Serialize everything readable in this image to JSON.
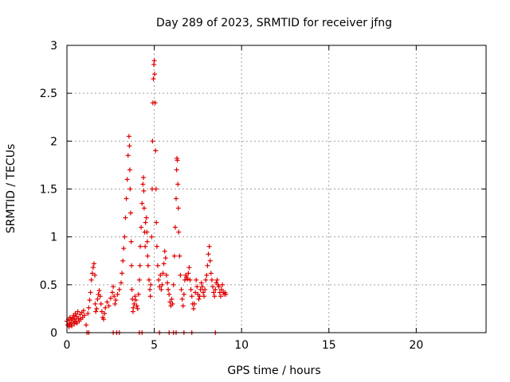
{
  "chart_data": {
    "type": "scatter",
    "title": "Day 289 of 2023, SRMTID for receiver jfng",
    "xlabel": "GPS time / hours",
    "ylabel": "SRMTID / TECUs",
    "xlim": [
      0,
      24
    ],
    "ylim": [
      0,
      3
    ],
    "xticks": [
      0,
      5,
      10,
      15,
      20
    ],
    "yticks": [
      0,
      0.5,
      1,
      1.5,
      2,
      2.5,
      3
    ],
    "xtick_labels": [
      "0",
      "5",
      "10",
      "15",
      "20"
    ],
    "ytick_labels": [
      "0",
      "0.5",
      "1",
      "1.5",
      "2",
      "2.5",
      "3"
    ],
    "grid": true,
    "marker": "+",
    "color": "#e00000",
    "series": [
      {
        "name": "SRMTID",
        "points": [
          [
            0.0,
            0.12
          ],
          [
            0.05,
            0.08
          ],
          [
            0.08,
            0.14
          ],
          [
            0.12,
            0.06
          ],
          [
            0.15,
            0.1
          ],
          [
            0.18,
            0.16
          ],
          [
            0.22,
            0.09
          ],
          [
            0.25,
            0.13
          ],
          [
            0.28,
            0.07
          ],
          [
            0.32,
            0.15
          ],
          [
            0.35,
            0.11
          ],
          [
            0.38,
            0.18
          ],
          [
            0.42,
            0.09
          ],
          [
            0.45,
            0.14
          ],
          [
            0.48,
            0.2
          ],
          [
            0.52,
            0.12
          ],
          [
            0.55,
            0.17
          ],
          [
            0.58,
            0.1
          ],
          [
            0.62,
            0.22
          ],
          [
            0.65,
            0.15
          ],
          [
            0.7,
            0.12
          ],
          [
            0.75,
            0.19
          ],
          [
            0.8,
            0.14
          ],
          [
            0.85,
            0.21
          ],
          [
            0.9,
            0.16
          ],
          [
            0.95,
            0.23
          ],
          [
            1.0,
            0.18
          ],
          [
            1.1,
            0.08
          ],
          [
            1.2,
            0.2
          ],
          [
            1.25,
            0.26
          ],
          [
            1.3,
            0.34
          ],
          [
            1.35,
            0.42
          ],
          [
            1.4,
            0.55
          ],
          [
            1.45,
            0.62
          ],
          [
            1.5,
            0.68
          ],
          [
            1.55,
            0.72
          ],
          [
            1.6,
            0.6
          ],
          [
            1.62,
            0.3
          ],
          [
            1.65,
            0.22
          ],
          [
            1.7,
            0.25
          ],
          [
            1.75,
            0.35
          ],
          [
            1.8,
            0.4
          ],
          [
            1.85,
            0.44
          ],
          [
            1.9,
            0.38
          ],
          [
            1.95,
            0.3
          ],
          [
            2.0,
            0.22
          ],
          [
            2.05,
            0.16
          ],
          [
            2.1,
            0.14
          ],
          [
            2.15,
            0.2
          ],
          [
            2.2,
            0.26
          ],
          [
            2.3,
            0.32
          ],
          [
            2.4,
            0.28
          ],
          [
            2.5,
            0.36
          ],
          [
            2.6,
            0.42
          ],
          [
            2.65,
            0.48
          ],
          [
            2.7,
            0.38
          ],
          [
            2.75,
            0.3
          ],
          [
            2.8,
            0.34
          ],
          [
            2.9,
            0.4
          ],
          [
            3.0,
            0.45
          ],
          [
            3.1,
            0.52
          ],
          [
            3.15,
            0.62
          ],
          [
            3.2,
            0.75
          ],
          [
            3.25,
            0.88
          ],
          [
            3.3,
            1.0
          ],
          [
            3.35,
            1.2
          ],
          [
            3.4,
            1.4
          ],
          [
            3.45,
            1.6
          ],
          [
            3.5,
            1.85
          ],
          [
            3.55,
            2.05
          ],
          [
            3.58,
            1.95
          ],
          [
            3.6,
            1.7
          ],
          [
            3.62,
            1.5
          ],
          [
            3.65,
            1.25
          ],
          [
            3.68,
            0.95
          ],
          [
            3.7,
            0.7
          ],
          [
            3.72,
            0.45
          ],
          [
            3.75,
            0.35
          ],
          [
            3.78,
            0.22
          ],
          [
            3.8,
            0.26
          ],
          [
            3.85,
            0.3
          ],
          [
            3.9,
            0.38
          ],
          [
            3.95,
            0.34
          ],
          [
            4.0,
            0.28
          ],
          [
            4.05,
            0.25
          ],
          [
            4.1,
            0.4
          ],
          [
            4.15,
            0.55
          ],
          [
            4.18,
            0.7
          ],
          [
            4.2,
            0.9
          ],
          [
            4.25,
            1.1
          ],
          [
            4.3,
            1.35
          ],
          [
            4.35,
            1.55
          ],
          [
            4.38,
            1.62
          ],
          [
            4.4,
            1.48
          ],
          [
            4.42,
            1.3
          ],
          [
            4.45,
            1.05
          ],
          [
            4.48,
            0.9
          ],
          [
            4.5,
            1.15
          ],
          [
            4.55,
            1.2
          ],
          [
            4.58,
            1.05
          ],
          [
            4.6,
            0.95
          ],
          [
            4.62,
            0.8
          ],
          [
            4.65,
            0.7
          ],
          [
            4.7,
            0.55
          ],
          [
            4.75,
            0.45
          ],
          [
            4.78,
            0.38
          ],
          [
            4.8,
            0.5
          ],
          [
            4.85,
            1.0
          ],
          [
            4.88,
            1.5
          ],
          [
            4.9,
            2.0
          ],
          [
            4.92,
            2.4
          ],
          [
            4.95,
            2.65
          ],
          [
            4.98,
            2.8
          ],
          [
            5.0,
            2.84
          ],
          [
            5.02,
            2.7
          ],
          [
            5.05,
            2.4
          ],
          [
            5.08,
            1.9
          ],
          [
            5.1,
            1.5
          ],
          [
            5.12,
            1.15
          ],
          [
            5.15,
            0.9
          ],
          [
            5.2,
            0.7
          ],
          [
            5.25,
            0.55
          ],
          [
            5.3,
            0.48
          ],
          [
            5.35,
            0.6
          ],
          [
            5.4,
            0.45
          ],
          [
            5.45,
            0.5
          ],
          [
            5.5,
            0.62
          ],
          [
            5.55,
            0.72
          ],
          [
            5.6,
            0.85
          ],
          [
            5.65,
            0.78
          ],
          [
            5.7,
            0.6
          ],
          [
            5.75,
            0.52
          ],
          [
            5.8,
            0.45
          ],
          [
            5.85,
            0.4
          ],
          [
            5.9,
            0.32
          ],
          [
            5.95,
            0.28
          ],
          [
            6.0,
            0.35
          ],
          [
            6.05,
            0.3
          ],
          [
            6.1,
            0.5
          ],
          [
            6.15,
            0.8
          ],
          [
            6.2,
            1.1
          ],
          [
            6.25,
            1.4
          ],
          [
            6.28,
            1.7
          ],
          [
            6.3,
            1.82
          ],
          [
            6.32,
            1.8
          ],
          [
            6.35,
            1.55
          ],
          [
            6.38,
            1.3
          ],
          [
            6.4,
            1.05
          ],
          [
            6.45,
            0.8
          ],
          [
            6.5,
            0.6
          ],
          [
            6.55,
            0.45
          ],
          [
            6.6,
            0.35
          ],
          [
            6.65,
            0.28
          ],
          [
            6.7,
            0.4
          ],
          [
            6.75,
            0.55
          ],
          [
            6.8,
            0.6
          ],
          [
            6.85,
            0.58
          ],
          [
            6.9,
            0.56
          ],
          [
            6.95,
            0.62
          ],
          [
            7.0,
            0.68
          ],
          [
            7.05,
            0.55
          ],
          [
            7.1,
            0.45
          ],
          [
            7.15,
            0.38
          ],
          [
            7.2,
            0.3
          ],
          [
            7.25,
            0.25
          ],
          [
            7.3,
            0.3
          ],
          [
            7.35,
            0.42
          ],
          [
            7.4,
            0.55
          ],
          [
            7.45,
            0.48
          ],
          [
            7.5,
            0.4
          ],
          [
            7.55,
            0.35
          ],
          [
            7.6,
            0.38
          ],
          [
            7.65,
            0.45
          ],
          [
            7.7,
            0.52
          ],
          [
            7.75,
            0.48
          ],
          [
            7.8,
            0.42
          ],
          [
            7.85,
            0.38
          ],
          [
            7.9,
            0.45
          ],
          [
            7.95,
            0.55
          ],
          [
            8.0,
            0.6
          ],
          [
            8.05,
            0.7
          ],
          [
            8.1,
            0.82
          ],
          [
            8.15,
            0.9
          ],
          [
            8.2,
            0.75
          ],
          [
            8.25,
            0.62
          ],
          [
            8.3,
            0.55
          ],
          [
            8.35,
            0.48
          ],
          [
            8.4,
            0.42
          ],
          [
            8.45,
            0.38
          ],
          [
            8.5,
            0.45
          ],
          [
            8.55,
            0.52
          ],
          [
            8.6,
            0.55
          ],
          [
            8.65,
            0.5
          ],
          [
            8.7,
            0.48
          ],
          [
            8.75,
            0.42
          ],
          [
            8.8,
            0.38
          ],
          [
            8.85,
            0.45
          ],
          [
            8.9,
            0.5
          ],
          [
            8.95,
            0.42
          ],
          [
            9.0,
            0.4
          ],
          [
            9.05,
            0.42
          ],
          [
            9.1,
            0.4
          ]
        ],
        "zero_points": [
          1.15,
          1.25,
          2.65,
          2.85,
          3.0,
          4.15,
          4.3,
          5.3,
          5.85,
          6.1,
          6.25,
          6.7,
          7.15,
          8.5
        ]
      }
    ]
  }
}
